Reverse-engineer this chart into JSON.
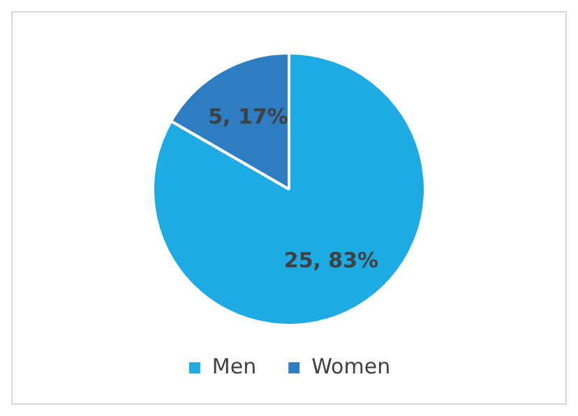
{
  "chart_data": {
    "type": "pie",
    "categories": [
      "Men",
      "Women"
    ],
    "values": [
      25,
      5
    ],
    "colors": [
      "#1eabe3",
      "#2e7dc3"
    ],
    "value_labels": [
      "25, 83%",
      "5, 17%"
    ],
    "legend": "bottom"
  }
}
